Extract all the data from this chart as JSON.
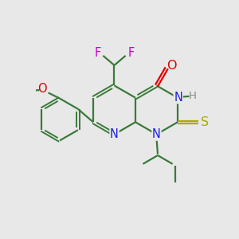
{
  "bg_color": "#e8e8e8",
  "bond_color": "#3a7a3a",
  "N_color": "#2020e0",
  "O_color": "#e00000",
  "F_color": "#cc00cc",
  "S_color": "#aaaa00",
  "H_color": "#888888",
  "line_width": 1.6,
  "font_size": 10.5,
  "xlim": [
    0,
    10
  ],
  "ylim": [
    0,
    10
  ]
}
